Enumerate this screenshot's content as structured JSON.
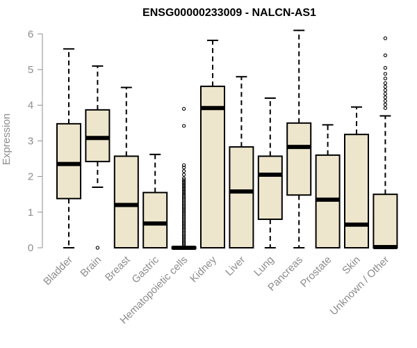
{
  "chart_data": {
    "type": "boxplot",
    "title": "ENSG00000233009 - NALCN-AS1",
    "xlabel": "",
    "ylabel": "Expression",
    "ylim": [
      0,
      6.2
    ],
    "yticks": [
      "0",
      "1",
      "2",
      "3",
      "4",
      "5",
      "6"
    ],
    "categories": [
      "Bladder",
      "Brain",
      "Breast",
      "Gastric",
      "Hematopoietic cells",
      "Kidney",
      "Liver",
      "Lung",
      "Pancreas",
      "Prostate",
      "Skin",
      "Unknown / Other"
    ],
    "boxes": [
      {
        "category": "Bladder",
        "min": 0,
        "q1": 1.38,
        "median": 2.35,
        "q3": 3.48,
        "max": 5.58,
        "outliers": []
      },
      {
        "category": "Brain",
        "min": 1.7,
        "q1": 2.42,
        "median": 3.08,
        "q3": 3.87,
        "max": 5.1,
        "outliers": [
          0.0
        ]
      },
      {
        "category": "Breast",
        "min": 0,
        "q1": 0,
        "median": 1.2,
        "q3": 2.57,
        "max": 4.5,
        "outliers": []
      },
      {
        "category": "Gastric",
        "min": 0,
        "q1": 0,
        "median": 0.68,
        "q3": 1.55,
        "max": 2.62,
        "outliers": []
      },
      {
        "category": "Hematopoietic cells",
        "min": 0,
        "q1": 0,
        "median": 0.0,
        "q3": 0.02,
        "max": 0.04,
        "outliers": [
          0.06,
          0.1,
          0.14,
          0.18,
          0.22,
          0.26,
          0.3,
          0.34,
          0.38,
          0.42,
          0.46,
          0.5,
          0.54,
          0.58,
          0.62,
          0.66,
          0.7,
          0.74,
          0.78,
          0.82,
          0.86,
          0.9,
          0.94,
          0.98,
          1.02,
          1.06,
          1.1,
          1.14,
          1.18,
          1.22,
          1.26,
          1.3,
          1.34,
          1.38,
          1.42,
          1.46,
          1.5,
          1.55,
          1.6,
          1.65,
          1.7,
          1.75,
          1.8,
          1.85,
          1.9,
          1.95,
          2.05,
          2.15,
          2.25,
          2.32,
          3.42,
          3.9
        ]
      },
      {
        "category": "Kidney",
        "min": 0,
        "q1": 0,
        "median": 3.92,
        "q3": 4.53,
        "max": 5.82,
        "outliers": []
      },
      {
        "category": "Liver",
        "min": 0,
        "q1": 0,
        "median": 1.58,
        "q3": 2.83,
        "max": 4.8,
        "outliers": []
      },
      {
        "category": "Lung",
        "min": 0,
        "q1": 0.8,
        "median": 2.05,
        "q3": 2.57,
        "max": 4.2,
        "outliers": []
      },
      {
        "category": "Pancreas",
        "min": 0,
        "q1": 1.48,
        "median": 2.83,
        "q3": 3.5,
        "max": 6.1,
        "outliers": []
      },
      {
        "category": "Prostate",
        "min": 0,
        "q1": 0,
        "median": 1.35,
        "q3": 2.6,
        "max": 3.45,
        "outliers": []
      },
      {
        "category": "Skin",
        "min": 0,
        "q1": 0,
        "median": 0.65,
        "q3": 3.18,
        "max": 3.95,
        "outliers": []
      },
      {
        "category": "Unknown / Other",
        "min": 0,
        "q1": 0,
        "median": 0.02,
        "q3": 1.5,
        "max": 3.7,
        "outliers": [
          3.92,
          4.02,
          4.12,
          4.22,
          4.32,
          4.42,
          4.52,
          4.62,
          4.75,
          4.88,
          5.05,
          5.4,
          5.88
        ]
      }
    ],
    "grid": false,
    "colors": {
      "box_fill": "#ede6cd",
      "box_stroke": "#000000",
      "axis": "#8c8c8c"
    }
  }
}
